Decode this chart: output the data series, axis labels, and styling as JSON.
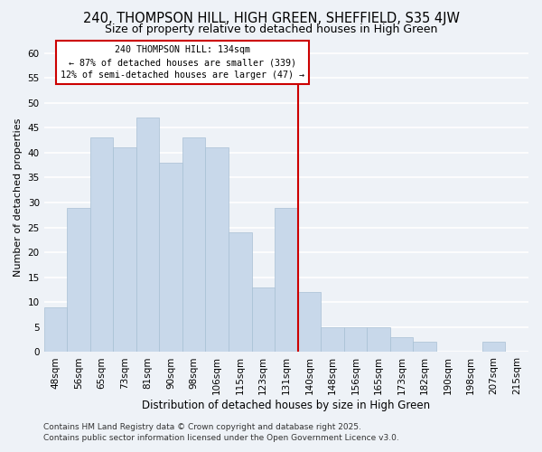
{
  "title": "240, THOMPSON HILL, HIGH GREEN, SHEFFIELD, S35 4JW",
  "subtitle": "Size of property relative to detached houses in High Green",
  "xlabel": "Distribution of detached houses by size in High Green",
  "ylabel": "Number of detached properties",
  "bar_color": "#c8d8ea",
  "bar_edge_color": "#a8c0d4",
  "bin_labels": [
    "48sqm",
    "56sqm",
    "65sqm",
    "73sqm",
    "81sqm",
    "90sqm",
    "98sqm",
    "106sqm",
    "115sqm",
    "123sqm",
    "131sqm",
    "140sqm",
    "148sqm",
    "156sqm",
    "165sqm",
    "173sqm",
    "182sqm",
    "190sqm",
    "198sqm",
    "207sqm",
    "215sqm"
  ],
  "bar_heights": [
    9,
    29,
    43,
    41,
    47,
    38,
    43,
    41,
    24,
    13,
    29,
    12,
    5,
    5,
    5,
    3,
    2,
    0,
    0,
    2,
    0
  ],
  "ylim": [
    0,
    62
  ],
  "yticks": [
    0,
    5,
    10,
    15,
    20,
    25,
    30,
    35,
    40,
    45,
    50,
    55,
    60
  ],
  "vline_x": 10.5,
  "vline_color": "#cc0000",
  "annotation_title": "240 THOMPSON HILL: 134sqm",
  "annotation_line1": "← 87% of detached houses are smaller (339)",
  "annotation_line2": "12% of semi-detached houses are larger (47) →",
  "annotation_box_color": "#ffffff",
  "annotation_box_edge": "#cc0000",
  "footer1": "Contains HM Land Registry data © Crown copyright and database right 2025.",
  "footer2": "Contains public sector information licensed under the Open Government Licence v3.0.",
  "background_color": "#eef2f7",
  "grid_color": "#ffffff",
  "title_fontsize": 10.5,
  "subtitle_fontsize": 9,
  "xlabel_fontsize": 8.5,
  "ylabel_fontsize": 8,
  "tick_fontsize": 7.5,
  "footer_fontsize": 6.5
}
